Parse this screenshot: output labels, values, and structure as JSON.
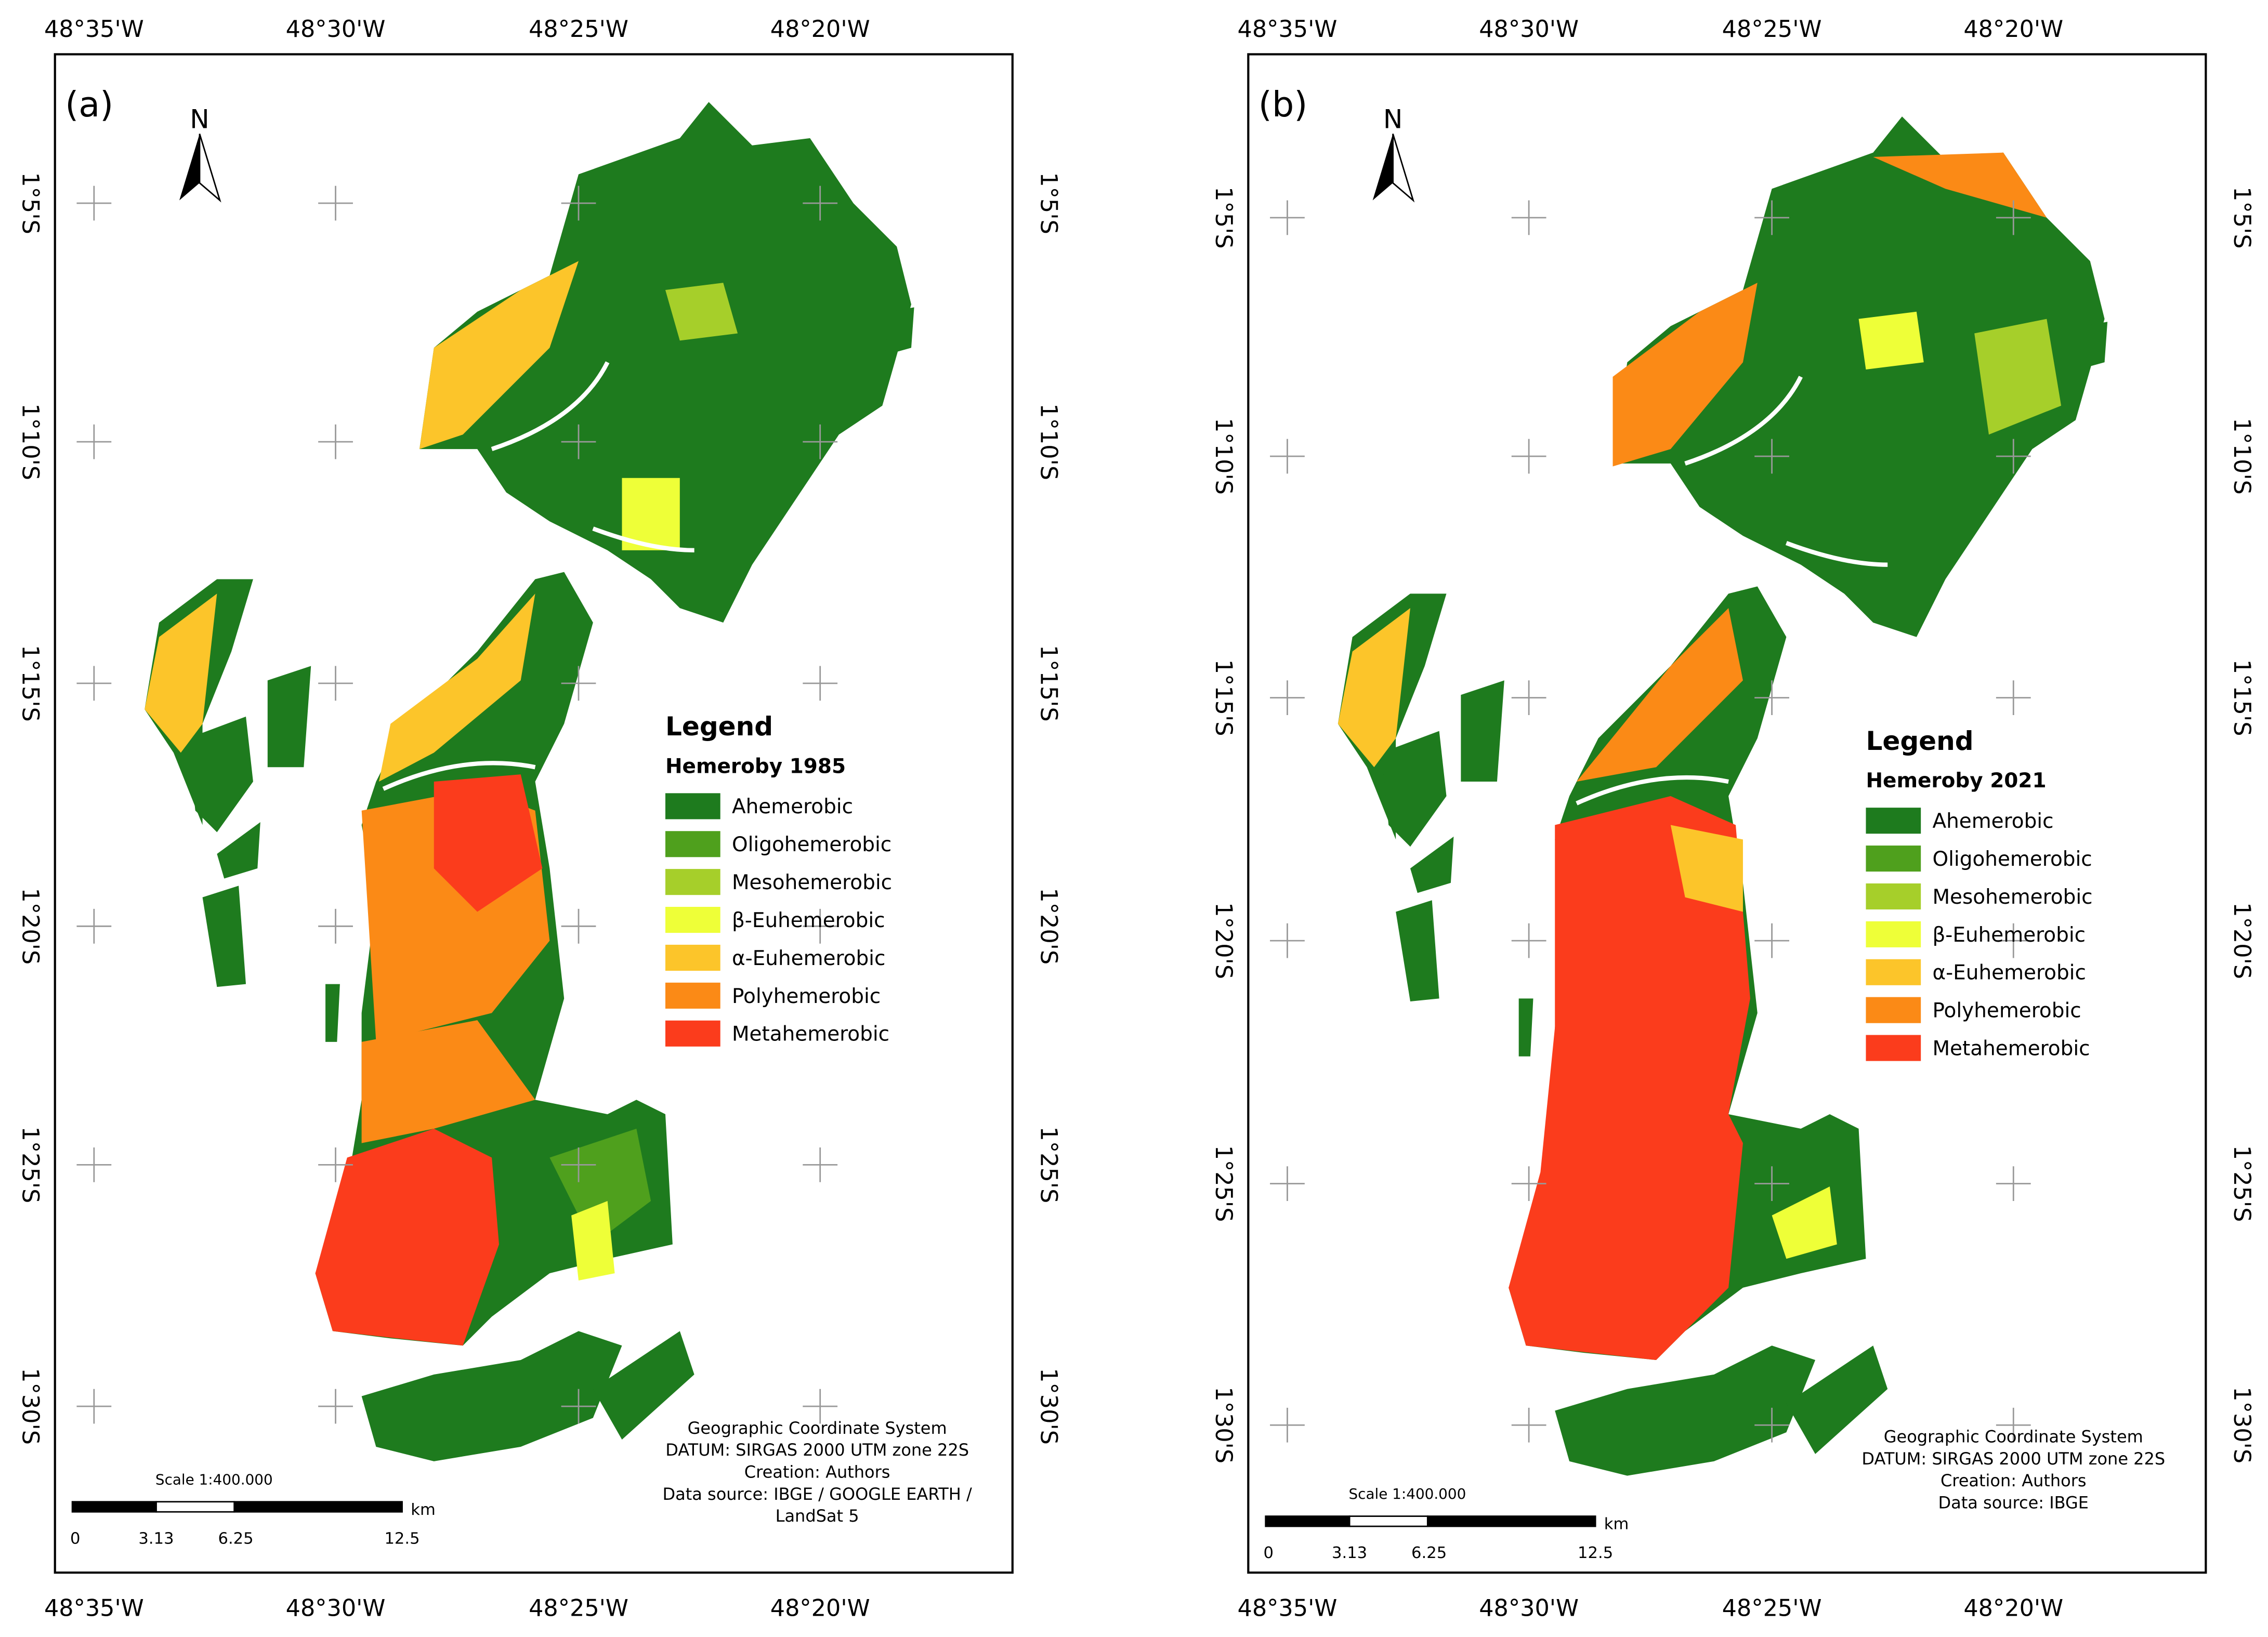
{
  "panels": [
    {
      "label": "(a)",
      "north": "N",
      "lon_labels": [
        "48°35'W",
        "48°30'W",
        "48°25'W",
        "48°20'W"
      ],
      "lat_labels": [
        "1°5'S",
        "1°10'S",
        "1°15'S",
        "1°20'S",
        "1°25'S",
        "1°30'S"
      ],
      "legend": {
        "title": "Legend",
        "subtitle": "Hemeroby 1985",
        "items": [
          {
            "name": "Ahemerobic",
            "color": "#1e7b1e"
          },
          {
            "name": "Oligohemerobic",
            "color": "#4fa01d"
          },
          {
            "name": "Mesohemerobic",
            "color": "#a6cf2a"
          },
          {
            "name": "β-Euhemerobic",
            "color": "#eeff38"
          },
          {
            "name": "α-Euhemerobic",
            "color": "#fcc52a"
          },
          {
            "name": "Polyhemerobic",
            "color": "#fb8a16"
          },
          {
            "name": "Metahemerobic",
            "color": "#fb3c1c"
          }
        ]
      },
      "scale": {
        "title": "Scale 1:400.000",
        "ticks": [
          "0",
          "3.13",
          "6.25",
          "12.5"
        ],
        "unit": "km"
      },
      "credits": [
        "Geographic Coordinate System",
        "DATUM: SIRGAS 2000 UTM zone 22S",
        "Creation: Authors",
        "Data source: IBGE / GOOGLE EARTH /",
        "LandSat 5"
      ]
    },
    {
      "label": "(b)",
      "north": "N",
      "lon_labels": [
        "48°35'W",
        "48°30'W",
        "48°25'W",
        "48°20'W"
      ],
      "lat_labels": [
        "1°5'S",
        "1°10'S",
        "1°15'S",
        "1°20'S",
        "1°25'S",
        "1°30'S"
      ],
      "legend": {
        "title": "Legend",
        "subtitle": "Hemeroby 2021",
        "items": [
          {
            "name": "Ahemerobic",
            "color": "#1e7b1e"
          },
          {
            "name": "Oligohemerobic",
            "color": "#4fa01d"
          },
          {
            "name": "Mesohemerobic",
            "color": "#a6cf2a"
          },
          {
            "name": "β-Euhemerobic",
            "color": "#eeff38"
          },
          {
            "name": "α-Euhemerobic",
            "color": "#fcc52a"
          },
          {
            "name": "Polyhemerobic",
            "color": "#fb8a16"
          },
          {
            "name": "Metahemerobic",
            "color": "#fb3c1c"
          }
        ]
      },
      "scale": {
        "title": "Scale 1:400.000",
        "ticks": [
          "0",
          "3.13",
          "6.25",
          "12.5"
        ],
        "unit": "km"
      },
      "credits": [
        "Geographic Coordinate System",
        "DATUM: SIRGAS 2000 UTM zone 22S",
        "Creation: Authors",
        "Data source: IBGE"
      ]
    }
  ]
}
